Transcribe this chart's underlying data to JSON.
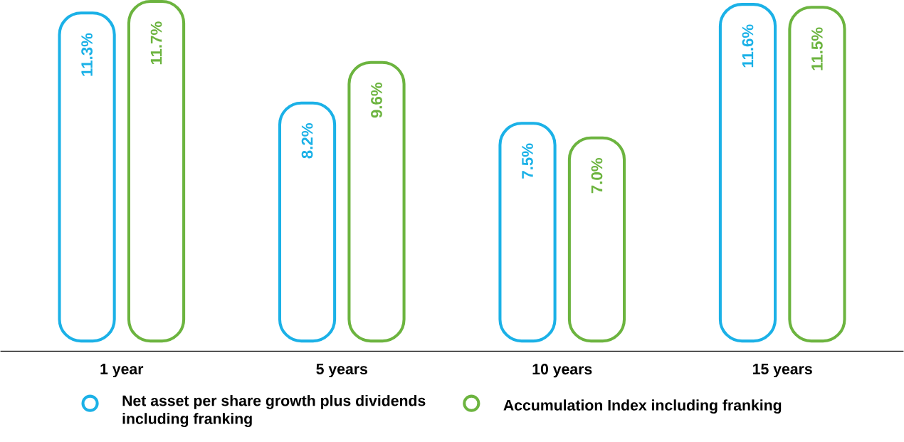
{
  "chart_data": {
    "type": "bar",
    "categories": [
      "1 year",
      "5 years",
      "10 years",
      "15 years"
    ],
    "series": [
      {
        "name": "Net asset per share growth plus dividends including franking",
        "color": "#1bb1e7",
        "values": [
          11.3,
          8.2,
          7.5,
          11.6
        ],
        "value_labels": [
          "11.3%",
          "8.2%",
          "7.5%",
          "11.6%"
        ]
      },
      {
        "name": "Accumulation Index including franking",
        "color": "#6cb43f",
        "values": [
          11.7,
          9.6,
          7.0,
          11.5
        ],
        "value_labels": [
          "11.7%",
          "9.6%",
          "7.0%",
          "11.5%"
        ]
      }
    ],
    "legend": "bottom"
  }
}
